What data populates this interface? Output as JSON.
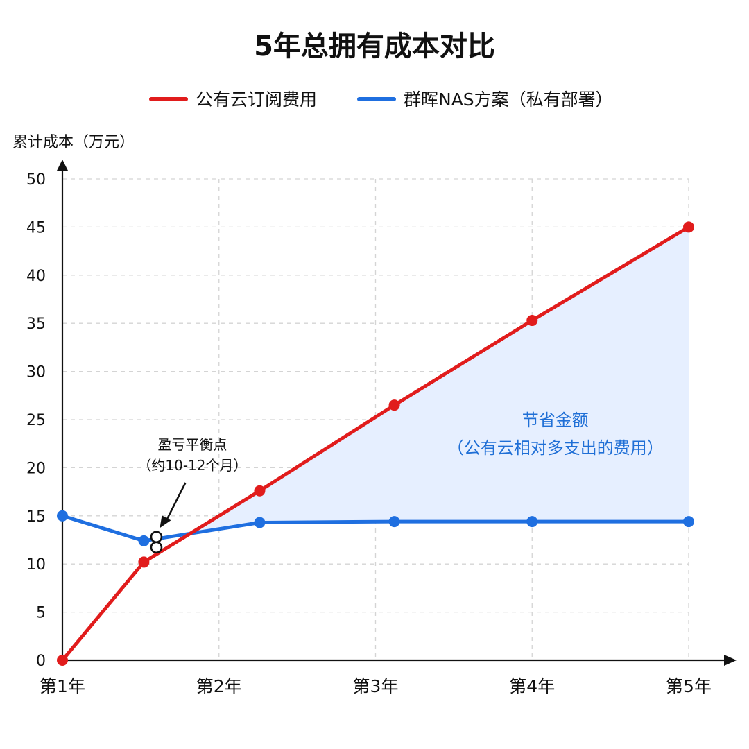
{
  "chart_data": {
    "type": "line",
    "title": "5年总拥有成本对比",
    "ylabel": "累计成本（万元）",
    "xlabel": "",
    "ylim": [
      0,
      50
    ],
    "xlim": [
      1,
      5
    ],
    "yticks": [
      0,
      5,
      10,
      15,
      20,
      25,
      30,
      35,
      40,
      45,
      50
    ],
    "xticks": [
      {
        "x": 1,
        "label": "第1年"
      },
      {
        "x": 2,
        "label": "第2年"
      },
      {
        "x": 3,
        "label": "第3年"
      },
      {
        "x": 4,
        "label": "第4年"
      },
      {
        "x": 5,
        "label": "第5年"
      }
    ],
    "grid": true,
    "legend_position": "top-center",
    "series": [
      {
        "name": "公有云订阅费用",
        "color": "#e11c1c",
        "points": [
          [
            1,
            0
          ],
          [
            1.52,
            10.2
          ],
          [
            2.26,
            17.6
          ],
          [
            3.12,
            26.5
          ],
          [
            4.0,
            35.3
          ],
          [
            5.0,
            45.0
          ]
        ]
      },
      {
        "name": "群晖NAS方案（私有部署）",
        "color": "#1f6fe0",
        "points": [
          [
            1,
            15.0
          ],
          [
            1.52,
            12.4
          ],
          [
            2.26,
            14.3
          ],
          [
            3.12,
            14.4
          ],
          [
            4.0,
            14.4
          ],
          [
            5.0,
            14.4
          ]
        ]
      }
    ],
    "shaded_region": {
      "between": [
        "公有云订阅费用",
        "群晖NAS方案（私有部署）"
      ],
      "color": "#e6efff",
      "label_line1": "节省金额",
      "label_line2": "（公有云相对多支出的费用）"
    },
    "annotation": {
      "line1": "盈亏平衡点",
      "line2": "（约10-12个月）",
      "x": 1.6,
      "y": 12.3
    }
  }
}
